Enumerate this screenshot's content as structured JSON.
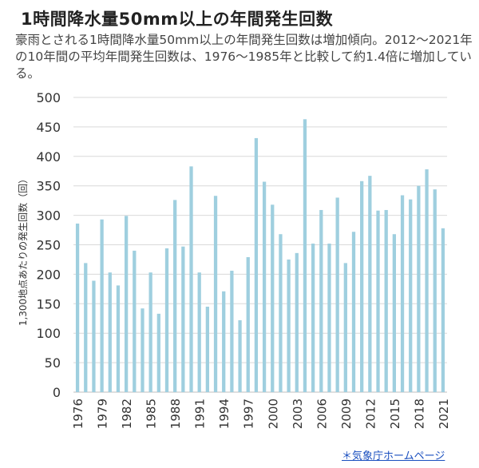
{
  "header": {
    "title": "1時間降水量50mm以上の年間発生回数",
    "description": "豪雨とされる1時間降水量50mm以上の年間発生回数は増加傾向。2012～2021年の10年間の平均年間発生回数は、1976～1985年と比較して約1.4倍に増加している。"
  },
  "source_link": "＊気象庁ホームページ",
  "colors": {
    "bar": "#9fcfdf",
    "grid": "#d9d9d9",
    "axis_text": "#333333"
  },
  "chart_data": {
    "type": "bar",
    "title": "",
    "xlabel": "",
    "ylabel": "1,300地点あたりの発生回数（回）",
    "ylim": [
      0,
      500
    ],
    "yticks": [
      0,
      50,
      100,
      150,
      200,
      250,
      300,
      350,
      400,
      450,
      500
    ],
    "grid": true,
    "x_tick_labels": [
      "1976",
      "1979",
      "1982",
      "1985",
      "1988",
      "1991",
      "1994",
      "1997",
      "2000",
      "2003",
      "2006",
      "2009",
      "2012",
      "2015",
      "2018",
      "2021"
    ],
    "categories": [
      "1976",
      "1977",
      "1978",
      "1979",
      "1980",
      "1981",
      "1982",
      "1983",
      "1984",
      "1985",
      "1986",
      "1987",
      "1988",
      "1989",
      "1990",
      "1991",
      "1992",
      "1993",
      "1994",
      "1995",
      "1996",
      "1997",
      "1998",
      "1999",
      "2000",
      "2001",
      "2002",
      "2003",
      "2004",
      "2005",
      "2006",
      "2007",
      "2008",
      "2009",
      "2010",
      "2011",
      "2012",
      "2013",
      "2014",
      "2015",
      "2016",
      "2017",
      "2018",
      "2019",
      "2020",
      "2021"
    ],
    "values": [
      286,
      219,
      189,
      293,
      203,
      181,
      299,
      240,
      142,
      203,
      133,
      244,
      326,
      247,
      383,
      203,
      145,
      333,
      171,
      206,
      122,
      229,
      431,
      357,
      318,
      268,
      225,
      236,
      463,
      252,
      309,
      252,
      330,
      219,
      272,
      358,
      367,
      308,
      309,
      268,
      334,
      327,
      350,
      378,
      344,
      278
    ]
  }
}
